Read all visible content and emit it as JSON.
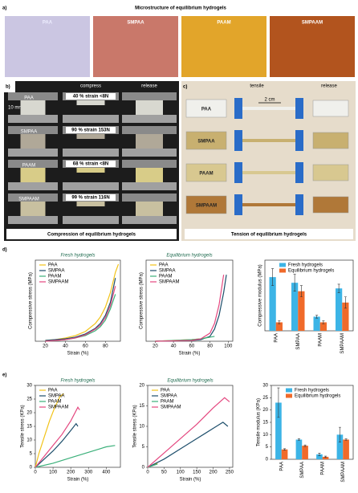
{
  "panels": {
    "a": {
      "label": "a)",
      "title": "Microstructure of equilibrium hydrogels",
      "images": [
        "PAA",
        "SMPAA",
        "PAAM",
        "SMPAAM"
      ]
    },
    "b": {
      "label": "b)",
      "compress": "compress",
      "release": "release",
      "scale": "10 mm",
      "rows": [
        {
          "sample": "PAA",
          "strain": "40 % strain  <8N"
        },
        {
          "sample": "SMPAA",
          "strain": "90 % strain  153N"
        },
        {
          "sample": "PAAM",
          "strain": "68 % strain  <8N"
        },
        {
          "sample": "SMPAAM",
          "strain": "99 % strain  116N"
        }
      ],
      "caption": "Compression of equilibrium hydrogels"
    },
    "c": {
      "label": "c)",
      "tensile": "tensile",
      "release": "release",
      "scale": "2 cm",
      "samples": [
        "PAA",
        "SMPAA",
        "PAAM",
        "SMPAAM"
      ],
      "caption": "Tension of equilibrium hydrogels"
    },
    "d": {
      "label": "d)"
    },
    "e": {
      "label": "e)"
    }
  },
  "chart_data": [
    {
      "type": "line",
      "title": "Fresh hydrogels",
      "xlabel": "Strain (%)",
      "ylabel": "Compressive stress (MPa)",
      "xlim": [
        10,
        95
      ],
      "xticks": [
        20,
        40,
        60,
        80
      ],
      "ylim": [
        0,
        1
      ],
      "x": [
        20,
        30,
        40,
        50,
        60,
        70,
        75,
        80,
        85,
        90,
        93
      ],
      "series": [
        {
          "name": "PAA",
          "color": "#f2c318",
          "values": [
            0.01,
            0.02,
            0.04,
            0.07,
            0.12,
            0.22,
            0.3,
            0.42,
            0.6,
            0.85,
            0.95
          ]
        },
        {
          "name": "SMPAA",
          "color": "#1d4e6b",
          "values": [
            0.01,
            0.02,
            0.03,
            0.05,
            0.09,
            0.16,
            0.22,
            0.32,
            0.48,
            0.78,
            null
          ]
        },
        {
          "name": "PAAM",
          "color": "#3bb07a",
          "values": [
            0,
            0.01,
            0.02,
            0.04,
            0.07,
            0.13,
            0.18,
            0.26,
            0.4,
            0.58,
            null
          ]
        },
        {
          "name": "SMPAAM",
          "color": "#e4477f",
          "values": [
            0,
            0.01,
            0.02,
            0.04,
            0.08,
            0.15,
            0.2,
            0.29,
            0.44,
            0.68,
            null
          ]
        }
      ]
    },
    {
      "type": "line",
      "title": "Equilibrium hydrogels",
      "xlabel": "Strain (%)",
      "ylabel": "Compressive stress (MPa)",
      "xlim": [
        10,
        105
      ],
      "xticks": [
        20,
        40,
        60,
        80,
        100
      ],
      "ylim": [
        0,
        1
      ],
      "x": [
        20,
        40,
        60,
        70,
        80,
        85,
        90,
        95,
        98
      ],
      "series": [
        {
          "name": "PAA",
          "color": "#f2c318",
          "values": [
            0,
            0.01,
            0.02,
            0.03,
            0.05,
            null,
            null,
            null,
            null
          ]
        },
        {
          "name": "SMPAA",
          "color": "#1d4e6b",
          "values": [
            0,
            0.005,
            0.01,
            0.02,
            0.06,
            0.15,
            0.32,
            0.6,
            0.82
          ]
        },
        {
          "name": "PAAM",
          "color": "#3bb07a",
          "values": [
            0,
            0.01,
            0.02,
            0.03,
            0.05,
            0.06,
            null,
            null,
            null
          ]
        },
        {
          "name": "SMPAAM",
          "color": "#e4477f",
          "values": [
            0,
            0.005,
            0.01,
            0.03,
            0.1,
            0.22,
            0.45,
            0.82,
            null
          ]
        }
      ]
    },
    {
      "type": "bar",
      "ylabel": "Compressive modulus (MPa)",
      "ylim": [
        0,
        0.25
      ],
      "categories": [
        "PAA",
        "SMPAA",
        "PAAM",
        "SMPAAM"
      ],
      "series": [
        {
          "name": "Fresh hydrogels",
          "color": "#3cb4e6",
          "values": [
            0.19,
            0.17,
            0.05,
            0.15
          ],
          "errors": [
            0.03,
            0.03,
            0.005,
            0.015
          ]
        },
        {
          "name": "Equilibrium hydrogels",
          "color": "#f06a2a",
          "values": [
            0.03,
            0.14,
            0.03,
            0.1
          ],
          "errors": [
            0.005,
            0.02,
            0.005,
            0.02
          ]
        }
      ]
    },
    {
      "type": "line",
      "title": "Fresh hydrogels",
      "xlabel": "Strain (%)",
      "ylabel": "Tensile stress (KPa)",
      "xlim": [
        0,
        480
      ],
      "xticks": [
        0,
        100,
        200,
        300,
        400
      ],
      "ylim": [
        0,
        30
      ],
      "yticks": [
        0,
        5,
        10,
        15,
        20,
        25,
        30
      ],
      "series": [
        {
          "name": "PAA",
          "color": "#f2c318",
          "x": [
            0,
            20,
            50,
            80,
            110,
            140,
            160
          ],
          "values": [
            0,
            5,
            11,
            17,
            22,
            26,
            27
          ]
        },
        {
          "name": "SMPAA",
          "color": "#1d4e6b",
          "x": [
            0,
            50,
            100,
            150,
            200,
            230,
            240
          ],
          "values": [
            0,
            3,
            6,
            9.5,
            13.5,
            16,
            15
          ]
        },
        {
          "name": "PAAM",
          "color": "#3bb07a",
          "x": [
            0,
            100,
            200,
            300,
            400,
            450
          ],
          "values": [
            0,
            1.5,
            3.5,
            5.5,
            7.5,
            8
          ]
        },
        {
          "name": "SMPAAM",
          "color": "#e4477f",
          "x": [
            0,
            50,
            100,
            150,
            200,
            240,
            250
          ],
          "values": [
            0,
            4,
            8,
            12,
            17,
            22,
            21
          ]
        }
      ]
    },
    {
      "type": "line",
      "title": "Equilibrium hydrogels",
      "xlabel": "Strain (%)",
      "ylabel": "Tensile stress (KPa)",
      "xlim": [
        0,
        260
      ],
      "xticks": [
        0,
        50,
        100,
        150,
        200,
        250
      ],
      "ylim": [
        0,
        20
      ],
      "yticks": [
        0,
        5,
        10,
        15,
        20
      ],
      "series": [
        {
          "name": "PAA",
          "color": "#f2c318",
          "x": [
            0,
            15,
            30
          ],
          "values": [
            0,
            0.5,
            1
          ]
        },
        {
          "name": "SMPAA",
          "color": "#1d4e6b",
          "x": [
            0,
            50,
            100,
            150,
            200,
            230,
            245
          ],
          "values": [
            0,
            2,
            4.5,
            7,
            9.5,
            11,
            10
          ]
        },
        {
          "name": "PAAM",
          "color": "#3bb07a",
          "x": [
            0,
            15,
            30
          ],
          "values": [
            0,
            0.4,
            0.8
          ]
        },
        {
          "name": "SMPAAM",
          "color": "#e4477f",
          "x": [
            0,
            50,
            100,
            150,
            200,
            235,
            250
          ],
          "values": [
            0,
            3.5,
            7,
            10.5,
            14.5,
            17,
            16
          ]
        }
      ]
    },
    {
      "type": "bar",
      "ylabel": "Tensile modulus (KPa)",
      "ylim": [
        0,
        30
      ],
      "yticks": [
        0,
        5,
        10,
        15,
        20,
        25,
        30
      ],
      "categories": [
        "PAA",
        "SMPAA",
        "PAAM",
        "SMPAAM"
      ],
      "series": [
        {
          "name": "Fresh hydrogels",
          "color": "#3cb4e6",
          "values": [
            23,
            8,
            2,
            10
          ],
          "errors": [
            6,
            0.3,
            0.5,
            3
          ]
        },
        {
          "name": "Equilibrium hydrogels",
          "color": "#f06a2a",
          "values": [
            4,
            5.5,
            1,
            8
          ],
          "errors": [
            0.3,
            0.3,
            0.3,
            0.3
          ]
        }
      ]
    }
  ]
}
